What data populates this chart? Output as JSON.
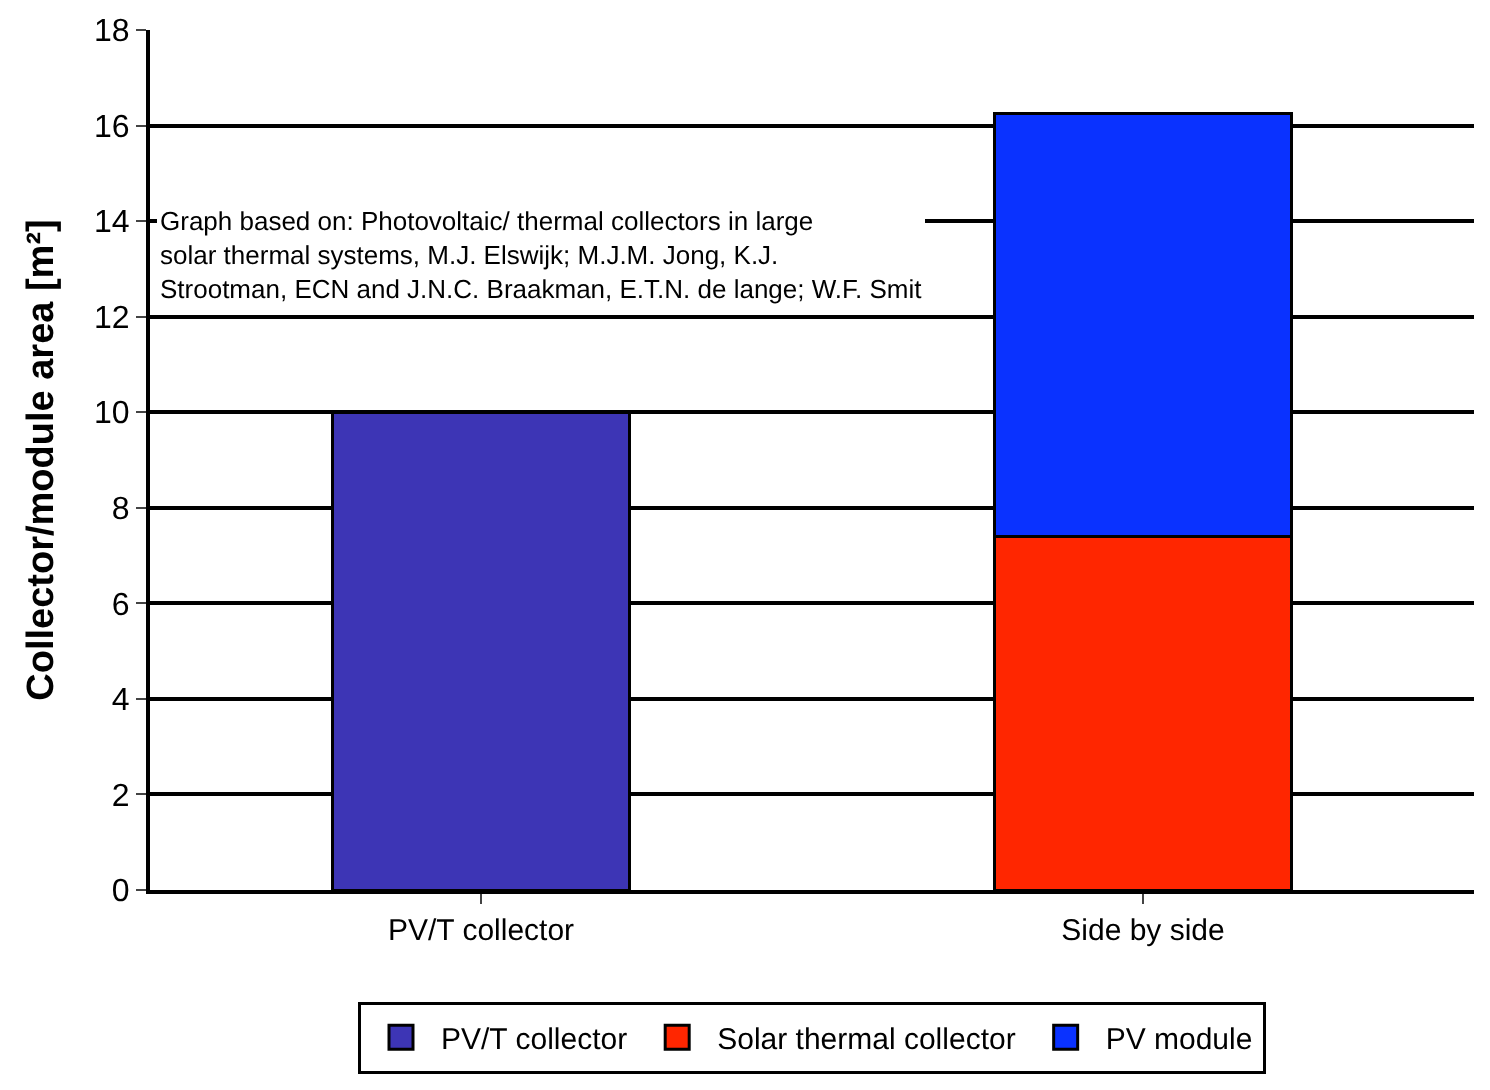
{
  "chart_data": {
    "type": "bar",
    "stacked": true,
    "categories": [
      "PV/T collector",
      "Side by side"
    ],
    "ylabel": "Collector/module area [m²]",
    "series": [
      {
        "name": "PV/T collector",
        "color": "#3d35b5",
        "values": [
          10,
          null
        ]
      },
      {
        "name": "Solar thermal collector",
        "color": "#ff2600",
        "values": [
          null,
          7.4
        ]
      },
      {
        "name": "PV module",
        "color": "#0a32ff",
        "values": [
          null,
          8.85
        ]
      }
    ],
    "ylim": [
      0,
      18
    ],
    "yticks": [
      0,
      2,
      4,
      6,
      8,
      10,
      12,
      14,
      16,
      18
    ],
    "grid": "y",
    "legend": "bottom",
    "annotations": [
      "Graph based on: Photovoltaic/ thermal collectors in large solar thermal systems, M.J. Elswijk; M.J.M. Jong, K.J. Strootman, ECN and J.N.C. Braakman, E.T.N. de lange; W.F. Smit"
    ]
  }
}
